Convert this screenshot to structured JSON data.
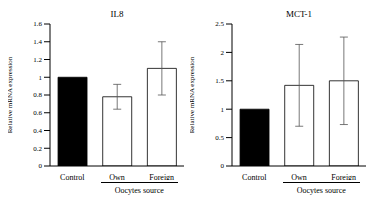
{
  "chart_data": [
    {
      "type": "bar",
      "title": "IL8",
      "y_label": "Relative mRNA expression",
      "annotation": "Oocytes source",
      "categories": [
        "Control",
        "Own",
        "Foreign"
      ],
      "values": [
        1,
        0.78,
        1.1
      ],
      "errors": [
        0,
        0.14,
        0.3
      ],
      "colors": [
        "#000000",
        "#ffffff",
        "#ffffff"
      ],
      "ylim": [
        0,
        1.6
      ],
      "yticks": [
        0,
        0.2,
        0.4,
        0.6,
        0.8,
        1,
        1.2,
        1.4,
        1.6
      ],
      "grid": false
    },
    {
      "type": "bar",
      "title": "MCT-1",
      "y_label": "Relative mRNA expression",
      "annotation": "Oocytes source",
      "categories": [
        "Control",
        "Own",
        "Foreign"
      ],
      "values": [
        1,
        1.42,
        1.5
      ],
      "errors": [
        0,
        0.72,
        0.77
      ],
      "colors": [
        "#000000",
        "#ffffff",
        "#ffffff"
      ],
      "ylim": [
        0,
        2.5
      ],
      "yticks": [
        0,
        0.5,
        1,
        1.5,
        2,
        2.5
      ],
      "grid": false
    }
  ]
}
